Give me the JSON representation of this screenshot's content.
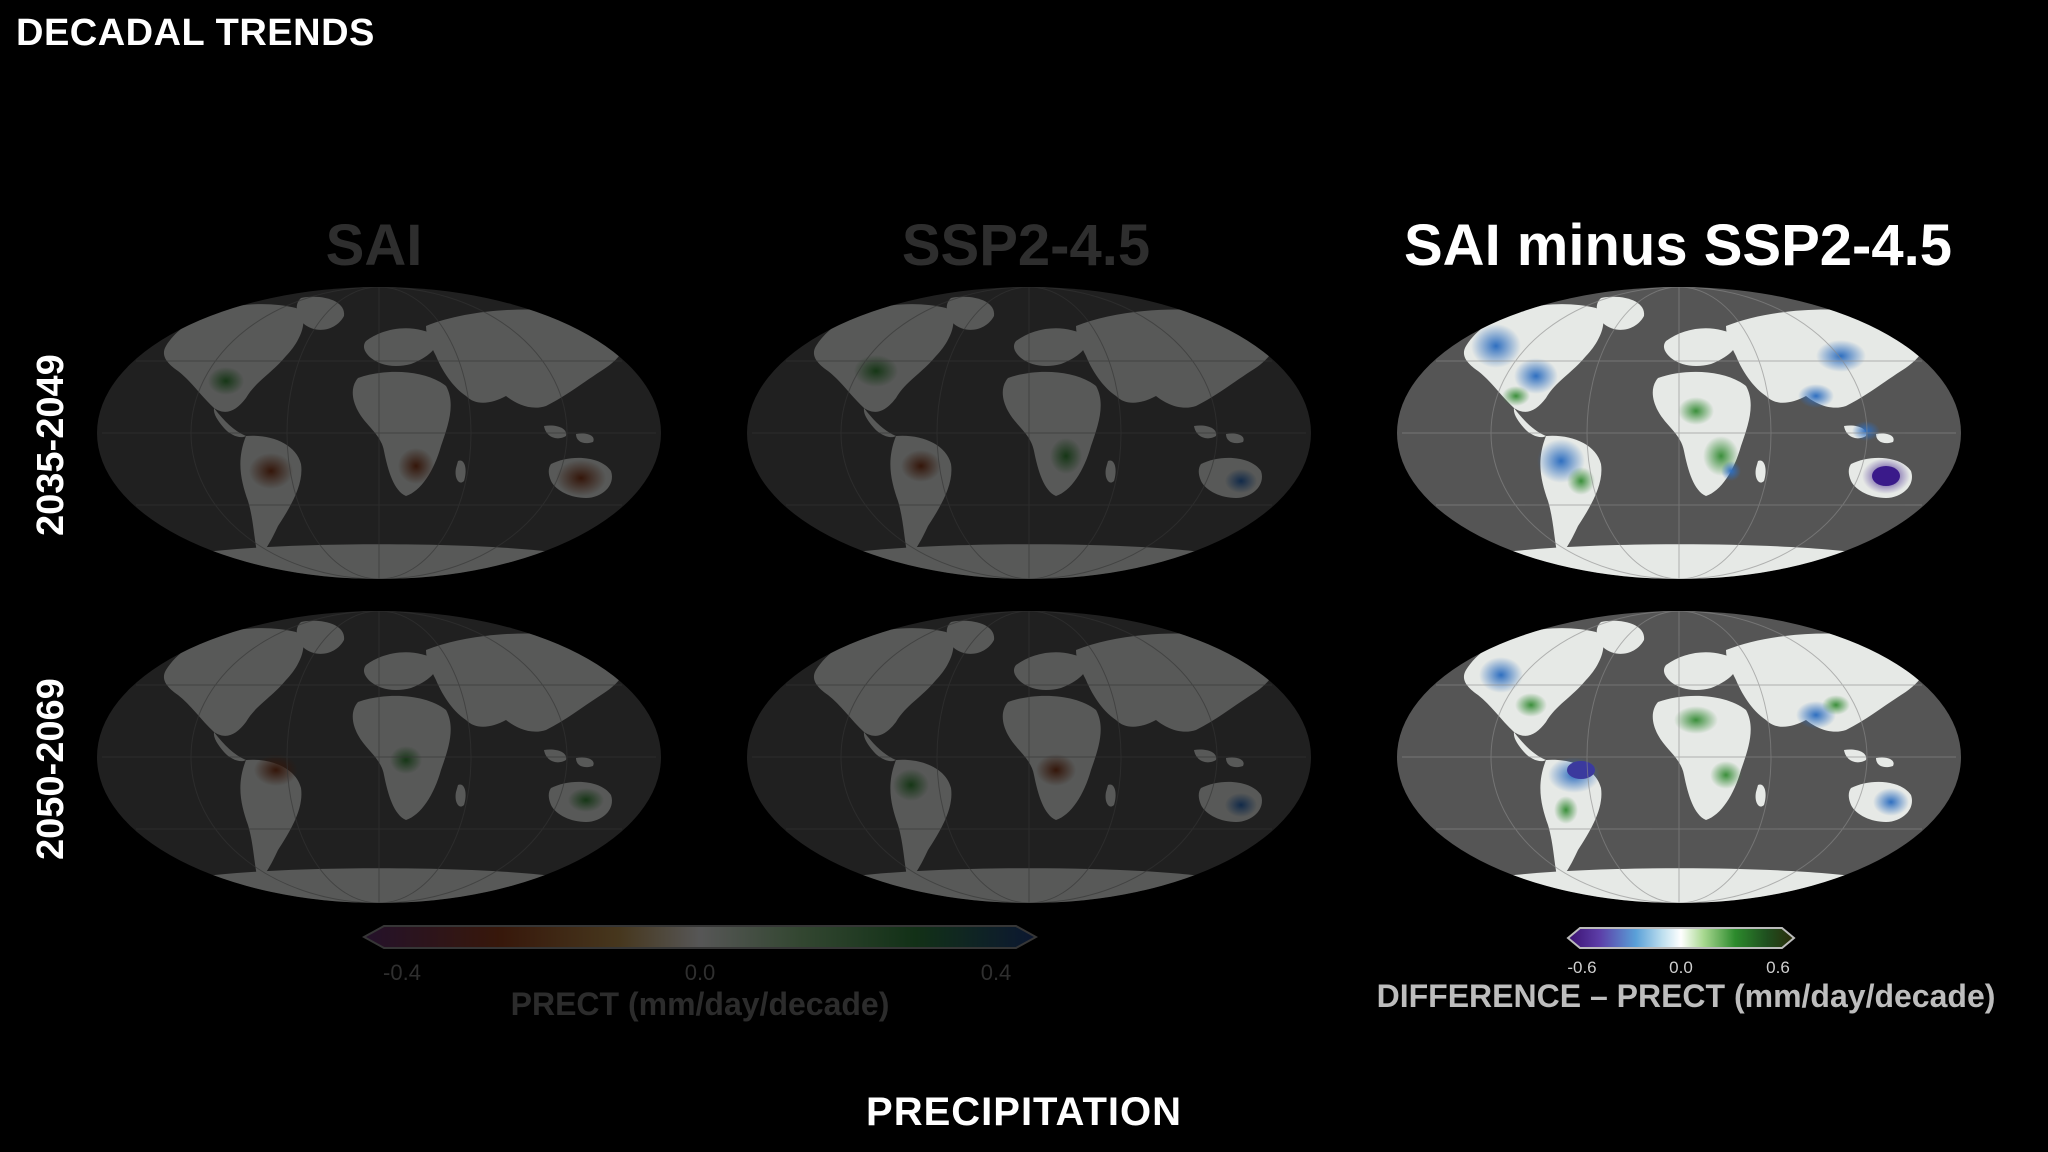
{
  "page": {
    "title": "DECADAL TRENDS",
    "bottom_title": "PRECIPITATION"
  },
  "columns": [
    {
      "title": "SAI",
      "state": "dimmed"
    },
    {
      "title": "SSP2-4.5",
      "state": "dimmed"
    },
    {
      "title": "SAI minus SSP2-4.5",
      "state": "highlighted"
    }
  ],
  "rows": [
    {
      "label": "2035-2049"
    },
    {
      "label": "2050-2069"
    }
  ],
  "colorbars": {
    "trend": {
      "ticks": [
        "-0.4",
        "0.0",
        "0.4"
      ],
      "caption": "PRECT (mm/day/decade)",
      "colors": [
        "#5a2d6b",
        "#8a3b1b",
        "#b08a4a",
        "#d8d8d8",
        "#7fb07a",
        "#2e7a3a",
        "#1e3a7a"
      ]
    },
    "difference": {
      "ticks": [
        "-0.6",
        "0.0",
        "0.6"
      ],
      "caption": "DIFFERENCE – PRECT (mm/day/decade)",
      "colors": [
        "#3b1070",
        "#5c3ea8",
        "#5aa0d8",
        "#bfe0ef",
        "#ffffff",
        "#a8d890",
        "#2c8a2c",
        "#1f4f1f",
        "#2b2b0a"
      ]
    }
  },
  "colors": {
    "background": "#000000",
    "ocean": "#555555",
    "land": "#e9ece9",
    "wet": "#3d7fc8",
    "dry_purple": "#4b2c9a",
    "green": "#3b8f3b"
  }
}
